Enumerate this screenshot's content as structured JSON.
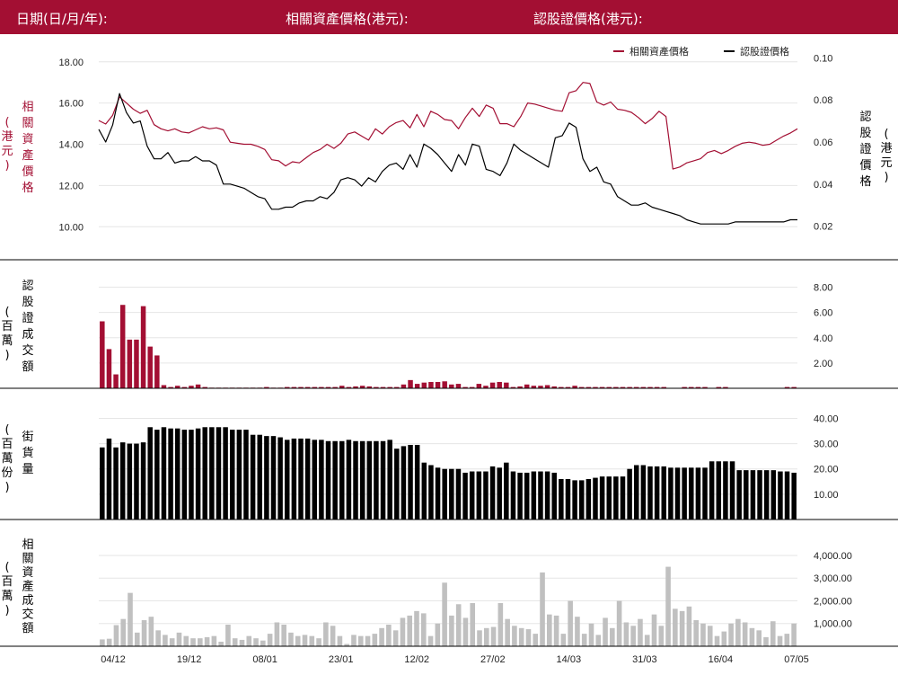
{
  "header": {
    "date_label": "日期(日/月/年):",
    "underlying_label": "相關資產價格(港元):",
    "warrant_label": "認股證價格(港元):"
  },
  "colors": {
    "header_bg": "#a30f33",
    "underlying": "#a30f33",
    "warrant": "#000000",
    "outstanding_bar": "#000000",
    "turnover_bar": "#c0c0c0",
    "axis_line": "#000000",
    "grid": "#e6e6e6"
  },
  "x_labels": [
    "04/12",
    "19/12",
    "08/01",
    "23/01",
    "12/02",
    "27/02",
    "14/03",
    "31/03",
    "16/04",
    "07/05"
  ],
  "chart_data": [
    {
      "type": "line",
      "legend": [
        "相關資產價格",
        "認股證價格"
      ],
      "legend_placement": "top-right",
      "ylabel_left": [
        "相",
        "關",
        "資",
        "產",
        "價",
        "格"
      ],
      "ylabel_left_unit": [
        "(",
        "港",
        "元",
        ")"
      ],
      "ylabel_right": [
        "認",
        "股",
        "證",
        "價",
        "格"
      ],
      "ylabel_right_unit": [
        "(",
        "港",
        "元",
        ")"
      ],
      "y_left_ticks": [
        "18.00",
        "16.00",
        "14.00",
        "12.00",
        "10.00"
      ],
      "y_left_lim": [
        8.4,
        18.6
      ],
      "y_right_ticks": [
        "0.10",
        "0.08",
        "0.06",
        "0.04",
        "0.02"
      ],
      "y_right_lim": [
        0.004,
        0.104
      ],
      "series": [
        {
          "name": "相關資產價格",
          "axis": "left",
          "values": [
            15.15,
            14.98,
            15.4,
            16.3,
            16.0,
            15.7,
            15.5,
            15.65,
            14.95,
            14.75,
            14.65,
            14.75,
            14.6,
            14.55,
            14.7,
            14.85,
            14.75,
            14.8,
            14.7,
            14.1,
            14.05,
            14.0,
            14.0,
            13.9,
            13.75,
            13.25,
            13.2,
            12.95,
            13.15,
            13.1,
            13.35,
            13.6,
            13.75,
            14.0,
            13.8,
            14.05,
            14.5,
            14.6,
            14.4,
            14.2,
            14.75,
            14.5,
            14.85,
            15.05,
            15.15,
            14.8,
            15.45,
            14.85,
            15.6,
            15.45,
            15.2,
            15.15,
            14.75,
            15.3,
            15.75,
            15.35,
            15.9,
            15.75,
            15.0,
            15.0,
            14.85,
            15.35,
            16.0,
            15.95,
            15.85,
            15.75,
            15.65,
            15.6,
            16.5,
            16.6,
            17.0,
            16.95,
            16.05,
            15.9,
            16.05,
            15.7,
            15.65,
            15.55,
            15.3,
            15.0,
            15.25,
            15.6,
            15.35,
            12.8,
            12.9,
            13.1,
            13.2,
            13.3,
            13.6,
            13.7,
            13.55,
            13.7,
            13.9,
            14.05,
            14.1,
            14.05,
            13.95,
            14.0,
            14.2,
            14.4,
            14.55,
            14.75
          ]
        },
        {
          "name": "認股證價格",
          "axis": "right",
          "values": [
            0.066,
            0.06,
            0.068,
            0.083,
            0.074,
            0.069,
            0.07,
            0.058,
            0.052,
            0.052,
            0.055,
            0.05,
            0.051,
            0.051,
            0.053,
            0.051,
            0.051,
            0.049,
            0.04,
            0.04,
            0.039,
            0.038,
            0.036,
            0.034,
            0.033,
            0.028,
            0.028,
            0.029,
            0.029,
            0.031,
            0.032,
            0.032,
            0.034,
            0.033,
            0.036,
            0.042,
            0.043,
            0.042,
            0.039,
            0.043,
            0.041,
            0.046,
            0.049,
            0.05,
            0.047,
            0.054,
            0.048,
            0.059,
            0.057,
            0.054,
            0.05,
            0.046,
            0.054,
            0.049,
            0.059,
            0.058,
            0.047,
            0.046,
            0.044,
            0.05,
            0.059,
            0.056,
            0.054,
            0.052,
            0.05,
            0.048,
            0.062,
            0.063,
            0.069,
            0.067,
            0.052,
            0.046,
            0.048,
            0.041,
            0.04,
            0.034,
            0.032,
            0.03,
            0.03,
            0.031,
            0.029,
            0.028,
            0.027,
            0.026,
            0.025,
            0.023,
            0.022,
            0.021,
            0.021,
            0.021,
            0.021,
            0.021,
            0.022,
            0.022,
            0.022,
            0.022,
            0.022,
            0.022,
            0.022,
            0.022,
            0.023,
            0.023
          ]
        }
      ]
    },
    {
      "type": "bar",
      "name": "warrant_turnover",
      "ylabel": [
        "認",
        "股",
        "證",
        "成",
        "交",
        "額"
      ],
      "ylabel_unit": [
        "(",
        "百",
        "萬",
        ")"
      ],
      "y_ticks": [
        "8.00",
        "6.00",
        "4.00",
        "2.00"
      ],
      "ylim": [
        0,
        8.75
      ],
      "values": [
        5.3,
        3.1,
        1.1,
        6.6,
        3.85,
        3.85,
        6.5,
        3.3,
        2.6,
        0.25,
        0.1,
        0.2,
        0.1,
        0.2,
        0.3,
        0.1,
        0.05,
        0.05,
        0.05,
        0.05,
        0.05,
        0.05,
        0.05,
        0.05,
        0.1,
        0.05,
        0.05,
        0.1,
        0.1,
        0.1,
        0.1,
        0.1,
        0.1,
        0.1,
        0.1,
        0.2,
        0.1,
        0.15,
        0.2,
        0.15,
        0.1,
        0.1,
        0.1,
        0.1,
        0.3,
        0.65,
        0.35,
        0.45,
        0.5,
        0.5,
        0.55,
        0.3,
        0.35,
        0.1,
        0.1,
        0.35,
        0.2,
        0.45,
        0.5,
        0.45,
        0.1,
        0.15,
        0.3,
        0.2,
        0.2,
        0.25,
        0.15,
        0.1,
        0.1,
        0.2,
        0.1,
        0.1,
        0.1,
        0.1,
        0.1,
        0.1,
        0.1,
        0.1,
        0.1,
        0.1,
        0.1,
        0.1,
        0.1,
        0,
        0,
        0.1,
        0.1,
        0.1,
        0.1,
        0,
        0.1,
        0.1,
        0,
        0,
        0,
        0,
        0,
        0,
        0,
        0,
        0.1,
        0.1
      ]
    },
    {
      "type": "bar",
      "name": "outstanding",
      "ylabel": [
        "街",
        "貨",
        "量"
      ],
      "ylabel_unit": [
        "(",
        "百",
        "萬",
        "份",
        ")"
      ],
      "y_ticks": [
        "40.00",
        "30.00",
        "20.00",
        "10.00"
      ],
      "ylim": [
        0,
        43
      ],
      "values": [
        28.5,
        32,
        28.5,
        30.5,
        30,
        30,
        30.5,
        36.5,
        35.5,
        36.5,
        36,
        36,
        35.5,
        35.5,
        36,
        36.5,
        36.5,
        36.5,
        36.5,
        35.5,
        35.5,
        35.5,
        33.5,
        33.5,
        33,
        33,
        32.5,
        31.5,
        32,
        32,
        32,
        31.5,
        31.5,
        31,
        31,
        31,
        31.5,
        31,
        31,
        31,
        31,
        31,
        31.5,
        28,
        29,
        29.5,
        29.5,
        22.5,
        21.5,
        20.5,
        20,
        20,
        20,
        18.5,
        19,
        19,
        19,
        21,
        20.5,
        22.5,
        19,
        18.5,
        18.5,
        19,
        19,
        19,
        18.5,
        16,
        16,
        15.5,
        15.5,
        16,
        16.5,
        17,
        17,
        17,
        17,
        20,
        21.5,
        21.5,
        21,
        21,
        21,
        20.5,
        20.5,
        20.5,
        20.5,
        20.5,
        20.5,
        23,
        23,
        23,
        23,
        19.5,
        19.5,
        19.5,
        19.5,
        19.5,
        19.5,
        19,
        19,
        18.5
      ]
    },
    {
      "type": "bar",
      "name": "underlying_turnover",
      "ylabel": [
        "相",
        "關",
        "資",
        "產",
        "成",
        "交",
        "額"
      ],
      "ylabel_unit": [
        "(",
        "百",
        "萬",
        ")"
      ],
      "y_ticks": [
        "4,000.00",
        "3,000.00",
        "2,000.00",
        "1,000.00"
      ],
      "ylim": [
        0,
        4750
      ],
      "values": [
        300,
        330,
        930,
        1200,
        2350,
        600,
        1150,
        1300,
        700,
        500,
        350,
        600,
        450,
        350,
        350,
        400,
        450,
        200,
        950,
        350,
        280,
        450,
        350,
        250,
        550,
        1050,
        950,
        600,
        450,
        500,
        450,
        350,
        1050,
        900,
        450,
        100,
        500,
        450,
        450,
        550,
        800,
        950,
        700,
        1250,
        1350,
        1550,
        1450,
        450,
        1000,
        2800,
        1350,
        1850,
        1250,
        1900,
        700,
        800,
        850,
        1900,
        1200,
        900,
        800,
        750,
        550,
        3250,
        1400,
        1350,
        550,
        2000,
        1300,
        550,
        1000,
        500,
        1250,
        800,
        2000,
        1050,
        900,
        1200,
        500,
        1400,
        900,
        3500,
        1650,
        1550,
        1750,
        1150,
        1000,
        900,
        450,
        650,
        1000,
        1200,
        1050,
        800,
        700,
        400,
        1100,
        450,
        550,
        1000
      ]
    }
  ]
}
